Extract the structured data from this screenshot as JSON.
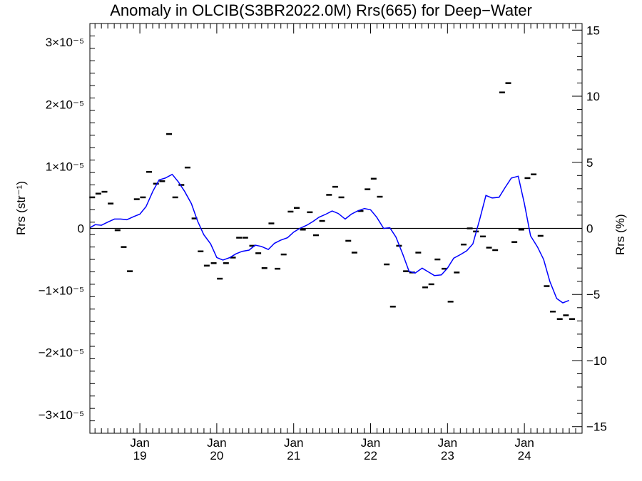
{
  "chart_data": {
    "type": "line",
    "title": "Anomaly in OLCIB(S3BR2022.0M) Rrs(665) for Deep−Water",
    "ylabel_left": "Rrs (str⁻¹)",
    "ylabel_right": "Rrs (%)",
    "xlim": [
      2018.35,
      2024.75
    ],
    "ylim_left": [
      -3.3e-05,
      3.3e-05
    ],
    "ylim_right": [
      -15.5,
      15.5
    ],
    "y_ticks_left": [
      {
        "value": 3e-05,
        "label": "3×10⁻⁵"
      },
      {
        "value": 2e-05,
        "label": "2×10⁻⁵"
      },
      {
        "value": 1e-05,
        "label": "1×10⁻⁵"
      },
      {
        "value": 0,
        "label": "0"
      },
      {
        "value": -1e-05,
        "label": "−1×10⁻⁵"
      },
      {
        "value": -2e-05,
        "label": "−2×10⁻⁵"
      },
      {
        "value": -3e-05,
        "label": "−3×10⁻⁵"
      }
    ],
    "y_ticks_right": [
      {
        "value": 15,
        "label": "15"
      },
      {
        "value": 10,
        "label": "10"
      },
      {
        "value": 5,
        "label": "5"
      },
      {
        "value": 0,
        "label": "0"
      },
      {
        "value": -5,
        "label": "−5"
      },
      {
        "value": -10,
        "label": "−10"
      },
      {
        "value": -15,
        "label": "−15"
      }
    ],
    "x_ticks": [
      {
        "value": 2019,
        "label1": "Jan",
        "label2": "19"
      },
      {
        "value": 2020,
        "label1": "Jan",
        "label2": "20"
      },
      {
        "value": 2021,
        "label1": "Jan",
        "label2": "21"
      },
      {
        "value": 2022,
        "label1": "Jan",
        "label2": "22"
      },
      {
        "value": 2023,
        "label1": "Jan",
        "label2": "23"
      },
      {
        "value": 2024,
        "label1": "Jan",
        "label2": "24"
      }
    ],
    "series": [
      {
        "kind": "monthly_markers",
        "color": "#000000",
        "points": [
          [
            2018.38,
            5e-06
          ],
          [
            2018.46,
            5.6e-06
          ],
          [
            2018.54,
            5.9e-06
          ],
          [
            2018.62,
            4e-06
          ],
          [
            2018.71,
            -3e-07
          ],
          [
            2018.79,
            -3e-06
          ],
          [
            2018.87,
            -6.9e-06
          ],
          [
            2018.96,
            4.7e-06
          ],
          [
            2019.04,
            5e-06
          ],
          [
            2019.12,
            9.1e-06
          ],
          [
            2019.21,
            7.2e-06
          ],
          [
            2019.29,
            7.6e-06
          ],
          [
            2019.38,
            1.52e-05
          ],
          [
            2019.46,
            5e-06
          ],
          [
            2019.54,
            7e-06
          ],
          [
            2019.62,
            9.8e-06
          ],
          [
            2019.71,
            1.6e-06
          ],
          [
            2019.79,
            -3.7e-06
          ],
          [
            2019.87,
            -6e-06
          ],
          [
            2019.96,
            -5.6e-06
          ],
          [
            2020.04,
            -8.1e-06
          ],
          [
            2020.12,
            -5.6e-06
          ],
          [
            2020.21,
            -4.7e-06
          ],
          [
            2020.29,
            -1.5e-06
          ],
          [
            2020.37,
            -1.5e-06
          ],
          [
            2020.46,
            -2.8e-06
          ],
          [
            2020.54,
            -4e-06
          ],
          [
            2020.62,
            -6.4e-06
          ],
          [
            2020.71,
            8e-07
          ],
          [
            2020.79,
            -6.5e-06
          ],
          [
            2020.87,
            -4.2e-06
          ],
          [
            2020.96,
            2.7e-06
          ],
          [
            2021.04,
            3.3e-06
          ],
          [
            2021.12,
            -2e-07
          ],
          [
            2021.21,
            2.6e-06
          ],
          [
            2021.29,
            -1.1e-06
          ],
          [
            2021.37,
            1.2e-06
          ],
          [
            2021.46,
            5.4e-06
          ],
          [
            2021.54,
            6.7e-06
          ],
          [
            2021.62,
            5e-06
          ],
          [
            2021.71,
            -2e-06
          ],
          [
            2021.79,
            -3.9e-06
          ],
          [
            2021.87,
            2.8e-06
          ],
          [
            2021.96,
            6.3e-06
          ],
          [
            2022.04,
            8e-06
          ],
          [
            2022.12,
            5.1e-06
          ],
          [
            2022.21,
            -5.8e-06
          ],
          [
            2022.29,
            -1.26e-05
          ],
          [
            2022.37,
            -2.8e-06
          ],
          [
            2022.46,
            -6.9e-06
          ],
          [
            2022.54,
            -7.1e-06
          ],
          [
            2022.62,
            -3.9e-06
          ],
          [
            2022.71,
            -9.5e-06
          ],
          [
            2022.79,
            -9e-06
          ],
          [
            2022.87,
            -5e-06
          ],
          [
            2022.96,
            -6.5e-06
          ],
          [
            2023.04,
            -1.18e-05
          ],
          [
            2023.12,
            -7.1e-06
          ],
          [
            2023.21,
            -2.6e-06
          ],
          [
            2023.29,
            0.0
          ],
          [
            2023.37,
            -5e-07
          ],
          [
            2023.46,
            -1.3e-06
          ],
          [
            2023.54,
            -3.1e-06
          ],
          [
            2023.62,
            -3.5e-06
          ],
          [
            2023.71,
            2.19e-05
          ],
          [
            2023.79,
            2.34e-05
          ],
          [
            2023.87,
            -2.2e-06
          ],
          [
            2023.96,
            -2e-07
          ],
          [
            2024.04,
            8.1e-06
          ],
          [
            2024.12,
            8.7e-06
          ],
          [
            2024.21,
            -1.2e-06
          ],
          [
            2024.29,
            -9.3e-06
          ],
          [
            2024.37,
            -1.34e-05
          ],
          [
            2024.46,
            -1.46e-05
          ],
          [
            2024.54,
            -1.4e-05
          ],
          [
            2024.62,
            -1.46e-05
          ]
        ]
      },
      {
        "kind": "smoothed_line",
        "color": "#0000ff",
        "points": [
          [
            2018.35,
            1e-07
          ],
          [
            2018.42,
            6e-07
          ],
          [
            2018.5,
            5e-07
          ],
          [
            2018.58,
            1e-06
          ],
          [
            2018.67,
            1.5e-06
          ],
          [
            2018.75,
            1.5e-06
          ],
          [
            2018.83,
            1.4e-06
          ],
          [
            2018.92,
            1.9e-06
          ],
          [
            2019.0,
            2.3e-06
          ],
          [
            2019.08,
            3.5e-06
          ],
          [
            2019.17,
            6e-06
          ],
          [
            2019.25,
            7.8e-06
          ],
          [
            2019.33,
            8.1e-06
          ],
          [
            2019.42,
            8.7e-06
          ],
          [
            2019.5,
            7.5e-06
          ],
          [
            2019.58,
            6e-06
          ],
          [
            2019.67,
            4e-06
          ],
          [
            2019.75,
            1.2e-06
          ],
          [
            2019.83,
            -1e-06
          ],
          [
            2019.92,
            -2.5e-06
          ],
          [
            2020.0,
            -4.7e-06
          ],
          [
            2020.08,
            -5.1e-06
          ],
          [
            2020.17,
            -4.7e-06
          ],
          [
            2020.25,
            -4.1e-06
          ],
          [
            2020.33,
            -3.7e-06
          ],
          [
            2020.42,
            -3.5e-06
          ],
          [
            2020.5,
            -2.7e-06
          ],
          [
            2020.58,
            -2.9e-06
          ],
          [
            2020.67,
            -3.4e-06
          ],
          [
            2020.75,
            -2.4e-06
          ],
          [
            2020.83,
            -1.9e-06
          ],
          [
            2020.92,
            -1.5e-06
          ],
          [
            2021.0,
            -6e-07
          ],
          [
            2021.08,
            0.0
          ],
          [
            2021.17,
            5e-07
          ],
          [
            2021.25,
            1.1e-06
          ],
          [
            2021.33,
            1.8e-06
          ],
          [
            2021.42,
            2.3e-06
          ],
          [
            2021.5,
            2.8e-06
          ],
          [
            2021.58,
            2.4e-06
          ],
          [
            2021.67,
            1.5e-06
          ],
          [
            2021.75,
            2.3e-06
          ],
          [
            2021.83,
            2.8e-06
          ],
          [
            2021.92,
            3.2e-06
          ],
          [
            2022.0,
            3e-06
          ],
          [
            2022.08,
            1.8e-06
          ],
          [
            2022.17,
            0.0
          ],
          [
            2022.25,
            1e-07
          ],
          [
            2022.33,
            -1.4e-06
          ],
          [
            2022.42,
            -4.2e-06
          ],
          [
            2022.5,
            -6.9e-06
          ],
          [
            2022.58,
            -7.2e-06
          ],
          [
            2022.67,
            -6.4e-06
          ],
          [
            2022.75,
            -7e-06
          ],
          [
            2022.83,
            -7.6e-06
          ],
          [
            2022.92,
            -7.5e-06
          ],
          [
            2023.0,
            -6.4e-06
          ],
          [
            2023.08,
            -4.8e-06
          ],
          [
            2023.17,
            -4.2e-06
          ],
          [
            2023.25,
            -3.6e-06
          ],
          [
            2023.33,
            -2.5e-06
          ],
          [
            2023.42,
            1.5e-06
          ],
          [
            2023.5,
            5.3e-06
          ],
          [
            2023.58,
            4.9e-06
          ],
          [
            2023.67,
            5e-06
          ],
          [
            2023.75,
            6.6e-06
          ],
          [
            2023.83,
            8.1e-06
          ],
          [
            2023.92,
            8.4e-06
          ],
          [
            2024.0,
            4e-06
          ],
          [
            2024.08,
            -1.2e-06
          ],
          [
            2024.17,
            -3e-06
          ],
          [
            2024.25,
            -5e-06
          ],
          [
            2024.33,
            -8.5e-06
          ],
          [
            2024.42,
            -1.13e-05
          ],
          [
            2024.5,
            -1.2e-05
          ],
          [
            2024.58,
            -1.16e-05
          ]
        ]
      }
    ]
  }
}
